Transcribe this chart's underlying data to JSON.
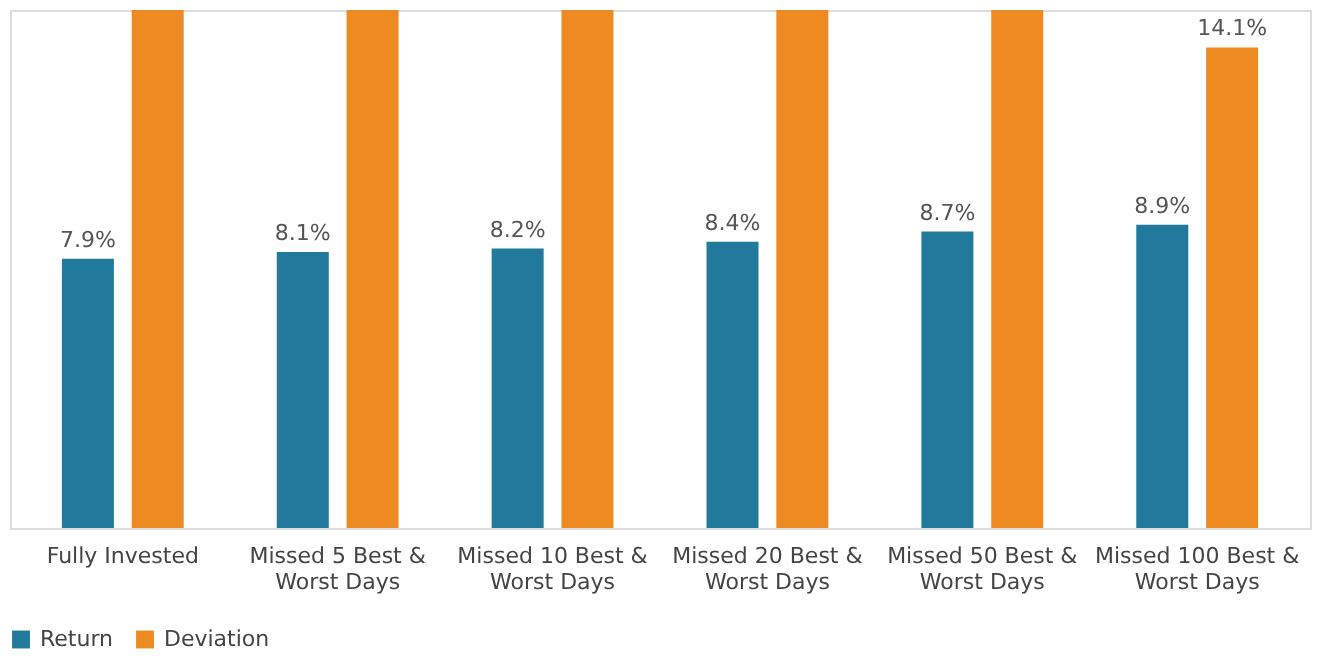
{
  "chart_data": {
    "type": "bar",
    "categories": [
      "Fully Invested",
      "Missed 5 Best & Worst Days",
      "Missed 10 Best & Worst Days",
      "Missed 20 Best & Worst Days",
      "Missed 50 Best & Worst Days",
      "Missed 100 Best & Worst Days"
    ],
    "series": [
      {
        "name": "Return",
        "color": "#21799b",
        "values": [
          7.9,
          8.1,
          8.2,
          8.4,
          8.7,
          8.9
        ],
        "value_labels": [
          "7.9%",
          "8.1%",
          "8.2%",
          "8.4%",
          "8.7%",
          "8.9%"
        ]
      },
      {
        "name": "Deviation",
        "color": "#ee8a22",
        "values": [
          15.2,
          15.2,
          15.2,
          15.2,
          15.2,
          14.1
        ],
        "value_labels": [
          null,
          null,
          null,
          null,
          null,
          "14.1%"
        ]
      }
    ],
    "ylim": [
      0,
      15.2
    ],
    "tick_labels": "x",
    "grid": false,
    "legend": "bottom"
  }
}
